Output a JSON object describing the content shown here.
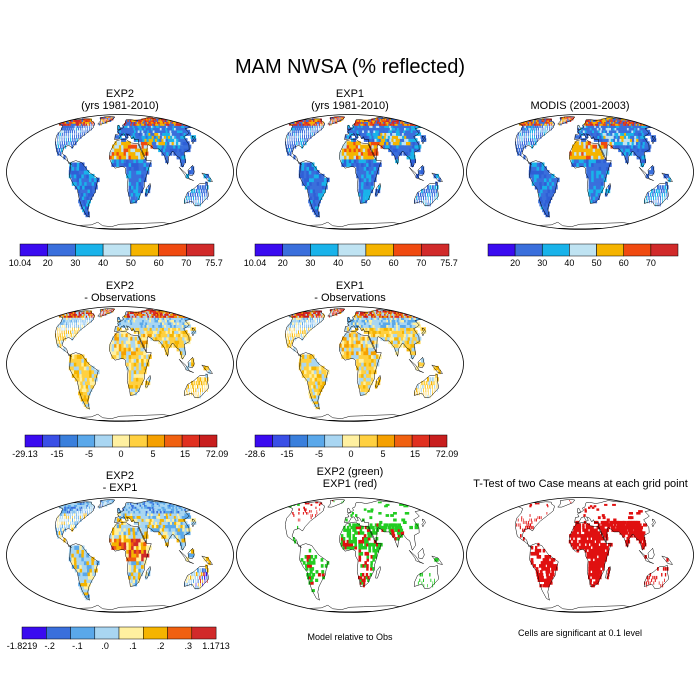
{
  "title": "MAM NWSA (% reflected)",
  "panels": [
    {
      "id": "exp2",
      "title": [
        "EXP2",
        "(yrs 1981-2010)"
      ],
      "kind": "abs",
      "scale": "abs_a",
      "legend": {
        "colors": [
          "#3a0bf0",
          "#3a6fdc",
          "#19b3ea",
          "#bfe3f2",
          "#f5b400",
          "#f04a10",
          "#d12a2a"
        ],
        "labels": [
          "10.04",
          "20",
          "30",
          "40",
          "50",
          "60",
          "70",
          "75.7"
        ],
        "ends": true
      }
    },
    {
      "id": "exp1",
      "title": [
        "EXP1",
        "(yrs 1981-2010)"
      ],
      "kind": "abs",
      "scale": "abs_a",
      "legend": {
        "colors": [
          "#3a0bf0",
          "#3a6fdc",
          "#19b3ea",
          "#bfe3f2",
          "#f5b400",
          "#f04a10",
          "#d12a2a"
        ],
        "labels": [
          "10.04",
          "20",
          "30",
          "40",
          "50",
          "60",
          "70",
          "75.7"
        ],
        "ends": true
      }
    },
    {
      "id": "modis",
      "title": [
        "MODIS (2001-2003)"
      ],
      "kind": "abs",
      "scale": "abs_b",
      "legend": {
        "colors": [
          "#3a0bf0",
          "#3a6fdc",
          "#19b3ea",
          "#bfe3f2",
          "#f5b400",
          "#f04a10",
          "#d12a2a"
        ],
        "labels": [
          "20",
          "30",
          "40",
          "50",
          "60",
          "70"
        ],
        "ends": false
      }
    },
    {
      "id": "exp2-obs",
      "title": [
        "EXP2",
        "- Observations"
      ],
      "kind": "diff",
      "scale": "diff_a",
      "legend": {
        "colors": [
          "#3a0bf0",
          "#3a4fe6",
          "#3a7fdc",
          "#5aa8ea",
          "#a9d6f2",
          "#fff0a0",
          "#ffd040",
          "#f5a000",
          "#f06010",
          "#e03020",
          "#c81e1e"
        ],
        "labels": [
          "-29.13",
          "-15",
          "-5",
          "0",
          "5",
          "15",
          "72.09"
        ],
        "ends": true
      }
    },
    {
      "id": "exp1-obs",
      "title": [
        "EXP1",
        "- Observations"
      ],
      "kind": "diff",
      "scale": "diff_b",
      "legend": {
        "colors": [
          "#3a0bf0",
          "#3a4fe6",
          "#3a7fdc",
          "#5aa8ea",
          "#a9d6f2",
          "#fff0a0",
          "#ffd040",
          "#f5a000",
          "#f06010",
          "#e03020",
          "#c81e1e"
        ],
        "labels": [
          "-28.6",
          "-15",
          "-5",
          "0",
          "5",
          "15",
          "72.09"
        ],
        "ends": true
      }
    },
    {
      "id": "exp2-exp1",
      "title": [
        "EXP2",
        "- EXP1"
      ],
      "kind": "ediff",
      "scale": "ediff",
      "legend": {
        "colors": [
          "#3a0bf0",
          "#3a6fdc",
          "#5aa8ea",
          "#a9d6f2",
          "#fff0a0",
          "#f5b400",
          "#f06010",
          "#d12a2a"
        ],
        "labels": [
          "-1.8219",
          "-.2",
          "-.1",
          ".0",
          ".1",
          ".2",
          ".3",
          "1.1713"
        ],
        "ends": true
      }
    },
    {
      "id": "model-rel",
      "title": [
        "EXP2 (green)",
        "EXP1 (red)"
      ],
      "kind": "rel",
      "caption": "Model relative to Obs"
    },
    {
      "id": "ttest",
      "title": [
        "T-Test of two Case means at each grid point"
      ],
      "kind": "sig",
      "caption": "Cells are significant at 0.1 level"
    }
  ]
}
